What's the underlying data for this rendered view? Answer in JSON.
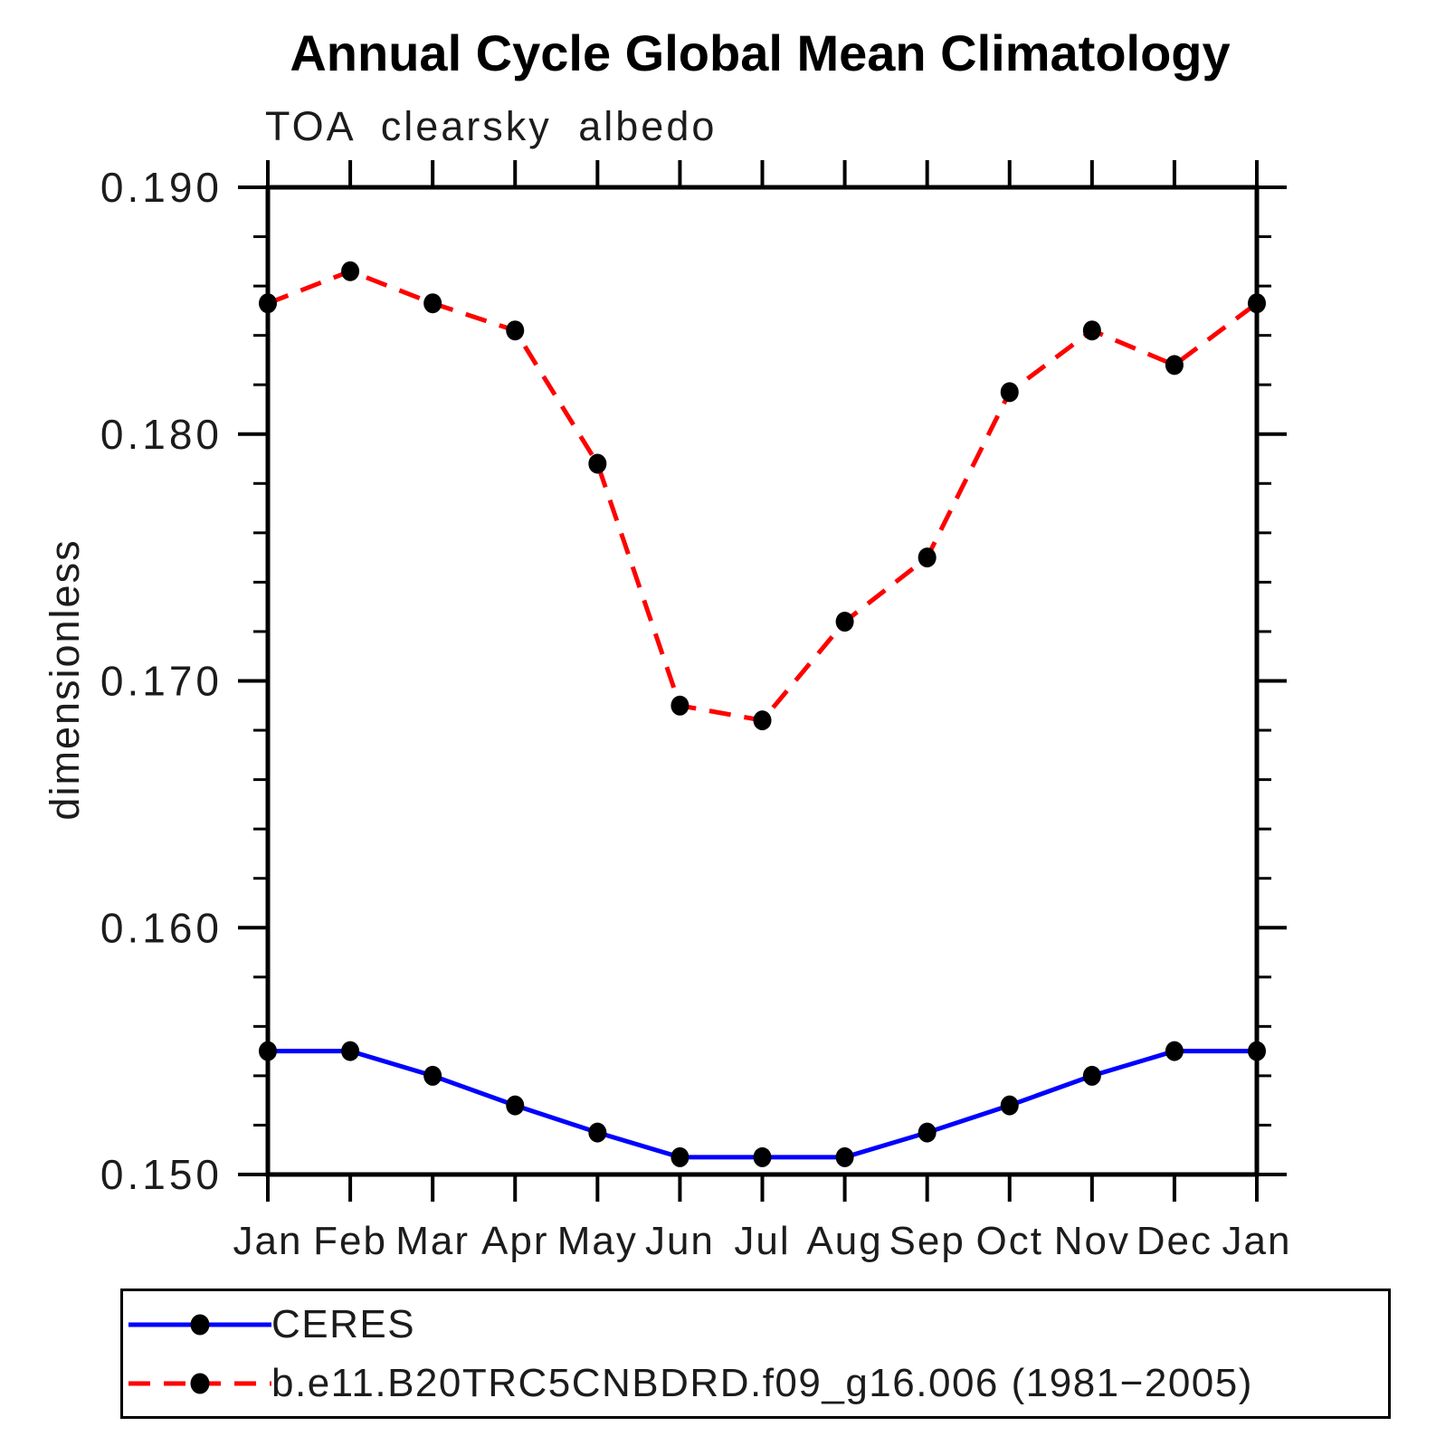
{
  "header": {
    "title": "Annual Cycle Global Mean Climatology",
    "subtitle": "TOA clearsky albedo"
  },
  "y_axis": {
    "label": "dimensionless",
    "tick_values": [
      0.15,
      0.16,
      0.17,
      0.18,
      0.19
    ],
    "tick_labels": [
      "0.150",
      "0.160",
      "0.170",
      "0.180",
      "0.190"
    ],
    "minor_step": 0.002
  },
  "x_axis": {
    "months": [
      "Jan",
      "Feb",
      "Mar",
      "Apr",
      "May",
      "Jun",
      "Jul",
      "Aug",
      "Sep",
      "Oct",
      "Nov",
      "Dec",
      "Jan"
    ]
  },
  "legend": {
    "items": [
      {
        "label": "CERES",
        "color": "#0000ff",
        "style": "solid",
        "marker": "filled-circle"
      },
      {
        "label": "b.e11.B20TRC5CNBDRD.f09_g16.006 (1981−2005)",
        "color": "#ff0000",
        "style": "dashed",
        "marker": "filled-circle"
      }
    ]
  },
  "colors": {
    "ceres_line": "#0000ff",
    "model_line": "#ff0000",
    "marker": "#000000",
    "axis": "#000000"
  },
  "chart_data": {
    "type": "line",
    "title": "Annual Cycle Global Mean Climatology",
    "subtitle": "TOA clearsky albedo",
    "ylabel": "dimensionless",
    "xlabel": "",
    "categories": [
      "Jan",
      "Feb",
      "Mar",
      "Apr",
      "May",
      "Jun",
      "Jul",
      "Aug",
      "Sep",
      "Oct",
      "Nov",
      "Dec",
      "Jan"
    ],
    "series": [
      {
        "name": "CERES",
        "color": "#0000ff",
        "line_style": "solid",
        "marker": "filled-circle",
        "values": [
          0.155,
          0.155,
          0.154,
          0.1528,
          0.1517,
          0.1507,
          0.1507,
          0.1507,
          0.1517,
          0.1528,
          0.154,
          0.155,
          0.155
        ]
      },
      {
        "name": "b.e11.B20TRC5CNBDRD.f09_g16.006 (1981−2005)",
        "color": "#ff0000",
        "line_style": "dashed",
        "marker": "filled-circle",
        "values": [
          0.1853,
          0.1866,
          0.1853,
          0.1842,
          0.1788,
          0.169,
          0.1684,
          0.1724,
          0.175,
          0.1817,
          0.1842,
          0.1828,
          0.1853
        ]
      }
    ],
    "ylim": [
      0.15,
      0.19
    ],
    "yticks": [
      0.15,
      0.16,
      0.17,
      0.18,
      0.19
    ],
    "y_minor_step": 0.002,
    "grid": false,
    "legend_position": "bottom-left-box"
  }
}
